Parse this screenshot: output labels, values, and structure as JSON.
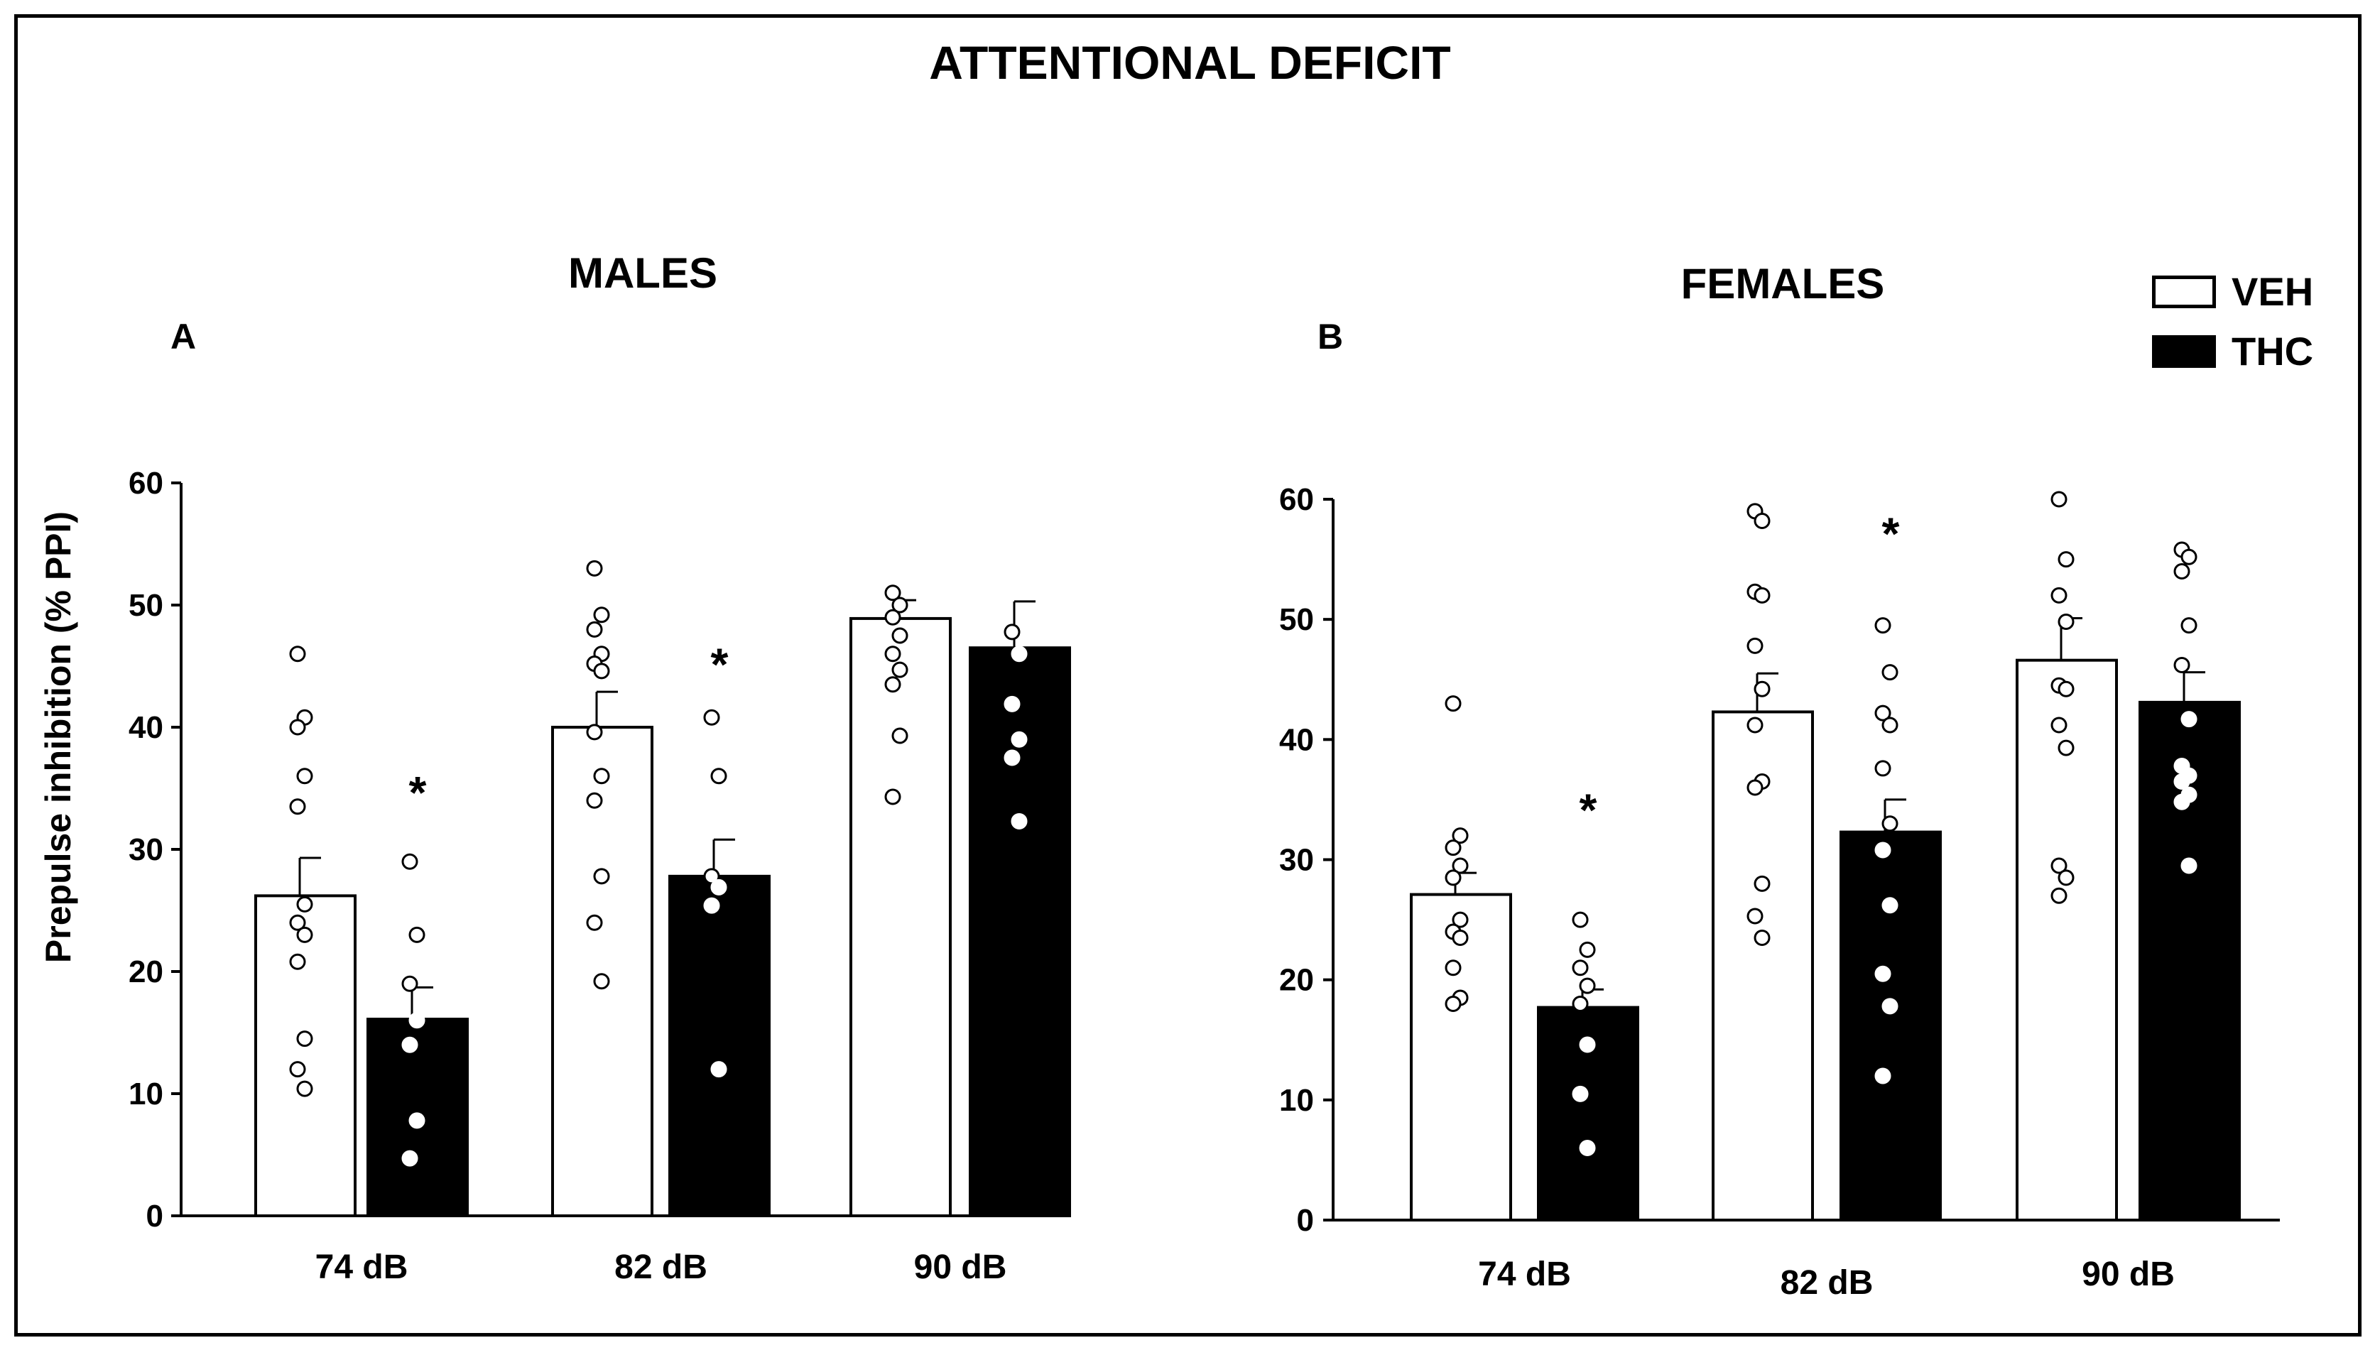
{
  "figure": {
    "title": "ATTENTIONAL DEFICIT",
    "ylabel": "Prepulse inhibition (% PPI)",
    "legend": [
      {
        "label": "VEH",
        "fill": "#ffffff"
      },
      {
        "label": "THC",
        "fill": "#000000"
      }
    ]
  },
  "chart_data": [
    {
      "type": "bar",
      "panel": "A",
      "title": "MALES",
      "xlabel": "",
      "ylabel": "Prepulse inhibition (% PPI)",
      "ylim": [
        0,
        60
      ],
      "yticks": [
        0,
        10,
        20,
        30,
        40,
        50,
        60
      ],
      "categories": [
        "74 dB",
        "82 dB",
        "90 dB"
      ],
      "series": [
        {
          "name": "VEH",
          "values": [
            26.2,
            40.0,
            48.9
          ],
          "errors": [
            3.1,
            2.9,
            1.5
          ],
          "points": [
            [
              46.0,
              40.8,
              40.0,
              36.0,
              33.5,
              25.5,
              24.0,
              23.0,
              20.8,
              14.5,
              12.0,
              10.4
            ],
            [
              53.0,
              49.2,
              48.0,
              46.0,
              45.2,
              44.6,
              39.6,
              36.0,
              34.0,
              27.8,
              24.0,
              19.2
            ],
            [
              51.0,
              50.0,
              49.0,
              47.5,
              46.0,
              44.7,
              43.5,
              39.3,
              34.3
            ]
          ]
        },
        {
          "name": "THC",
          "values": [
            16.1,
            27.8,
            46.5
          ],
          "errors": [
            2.6,
            3.0,
            3.8
          ],
          "points": [
            [
              29.0,
              23.0,
              19.0,
              16.0,
              14.0,
              7.8,
              4.7
            ],
            [
              40.8,
              36.0,
              27.8,
              26.9,
              25.4,
              12.0
            ],
            [
              47.8,
              46.0,
              41.9,
              39.0,
              37.5,
              32.3
            ]
          ]
        }
      ],
      "annotations": [
        {
          "text": "*",
          "category": "74 dB",
          "series": "THC",
          "y": 35
        },
        {
          "text": "*",
          "category": "82 dB",
          "series": "THC",
          "y": 45.5
        }
      ]
    },
    {
      "type": "bar",
      "panel": "B",
      "title": "FEMALES",
      "xlabel": "",
      "ylabel": "Prepulse inhibition (% PPI)",
      "ylim": [
        0,
        60
      ],
      "yticks": [
        0,
        10,
        20,
        30,
        40,
        50,
        60
      ],
      "categories": [
        "74 dB",
        "82 dB",
        "90 dB"
      ],
      "series": [
        {
          "name": "VEH",
          "values": [
            27.1,
            42.3,
            46.6
          ],
          "errors": [
            1.8,
            3.2,
            3.5
          ],
          "points": [
            [
              43.0,
              32.0,
              31.0,
              29.5,
              28.5,
              25.0,
              24.0,
              23.5,
              21.0,
              18.5,
              18.0
            ],
            [
              59.0,
              58.2,
              52.3,
              52.0,
              47.8,
              44.2,
              41.2,
              36.5,
              36.0,
              28.0,
              25.3,
              23.5
            ],
            [
              60.0,
              55.0,
              52.0,
              49.8,
              44.5,
              44.2,
              41.2,
              39.3,
              29.5,
              28.5,
              27.0
            ]
          ]
        },
        {
          "name": "THC",
          "values": [
            17.7,
            32.3,
            43.1
          ],
          "errors": [
            1.5,
            2.7,
            2.5
          ],
          "points": [
            [
              25.0,
              22.5,
              21.0,
              19.5,
              18.0,
              14.6,
              10.5,
              6.0
            ],
            [
              49.5,
              45.6,
              42.2,
              41.2,
              37.6,
              33.0,
              30.8,
              26.2,
              20.5,
              17.8,
              12.0
            ],
            [
              55.8,
              55.2,
              54.0,
              49.5,
              46.2,
              41.7,
              37.8,
              37.0,
              36.5,
              35.4,
              34.8,
              29.5
            ]
          ]
        }
      ],
      "annotations": [
        {
          "text": "*",
          "category": "74 dB",
          "series": "THC",
          "y": 34.5
        },
        {
          "text": "*",
          "category": "82 dB",
          "series": "THC",
          "y": 57.5
        }
      ]
    }
  ]
}
